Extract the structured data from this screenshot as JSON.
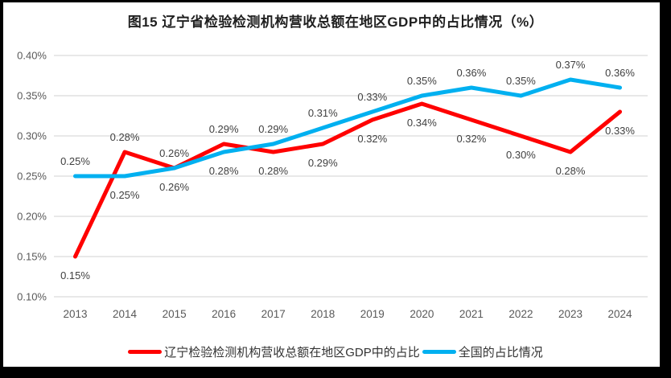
{
  "chart_data": {
    "type": "line",
    "title": "图15 辽宁省检验检测机构营收总额在地区GDP中的占比情况（%）",
    "categories": [
      "2013",
      "2014",
      "2015",
      "2016",
      "2017",
      "2018",
      "2019",
      "2020",
      "2021",
      "2022",
      "2023",
      "2024"
    ],
    "series": [
      {
        "name": "辽宁检验检测机构营收总额在地区GDP中的占比",
        "color": "#FF0000",
        "values": [
          0.15,
          0.28,
          0.26,
          0.29,
          0.28,
          0.29,
          0.32,
          0.34,
          0.32,
          0.3,
          0.28,
          0.33
        ],
        "point_labels": [
          "0.15%",
          "0.28%",
          "0.26%",
          "0.29%",
          "0.28%",
          "0.29%",
          "0.32%",
          "0.34%",
          "0.32%",
          "0.30%",
          "0.28%",
          "0.33%"
        ]
      },
      {
        "name": "全国的占比情况",
        "color": "#00B0F0",
        "values": [
          0.25,
          0.25,
          0.26,
          0.28,
          0.29,
          0.31,
          0.33,
          0.35,
          0.36,
          0.35,
          0.37,
          0.36
        ],
        "point_labels": [
          "0.25%",
          "0.25%",
          "0.26%",
          "0.28%",
          "0.29%",
          "0.31%",
          "0.33%",
          "0.35%",
          "0.36%",
          "0.35%",
          "0.37%",
          "0.36%"
        ]
      }
    ],
    "y_axis": {
      "min": 0.1,
      "max": 0.4,
      "tick_interval": 0.05,
      "tick_labels": [
        "0.40%",
        "0.35%",
        "0.30%",
        "0.25%",
        "0.20%",
        "0.15%",
        "0.10%"
      ]
    },
    "x_axis": {
      "tick_labels": [
        "2013",
        "2014",
        "2015",
        "2016",
        "2017",
        "2018",
        "2019",
        "2020",
        "2021",
        "2022",
        "2023",
        "2024"
      ]
    },
    "grid": true,
    "legend_position": "bottom",
    "colors": {
      "gridline": "#D9D9D9",
      "axis_text": "#595959",
      "label_text": "#404040",
      "title_text": "#1F1F1F",
      "frame": "#000000"
    }
  }
}
